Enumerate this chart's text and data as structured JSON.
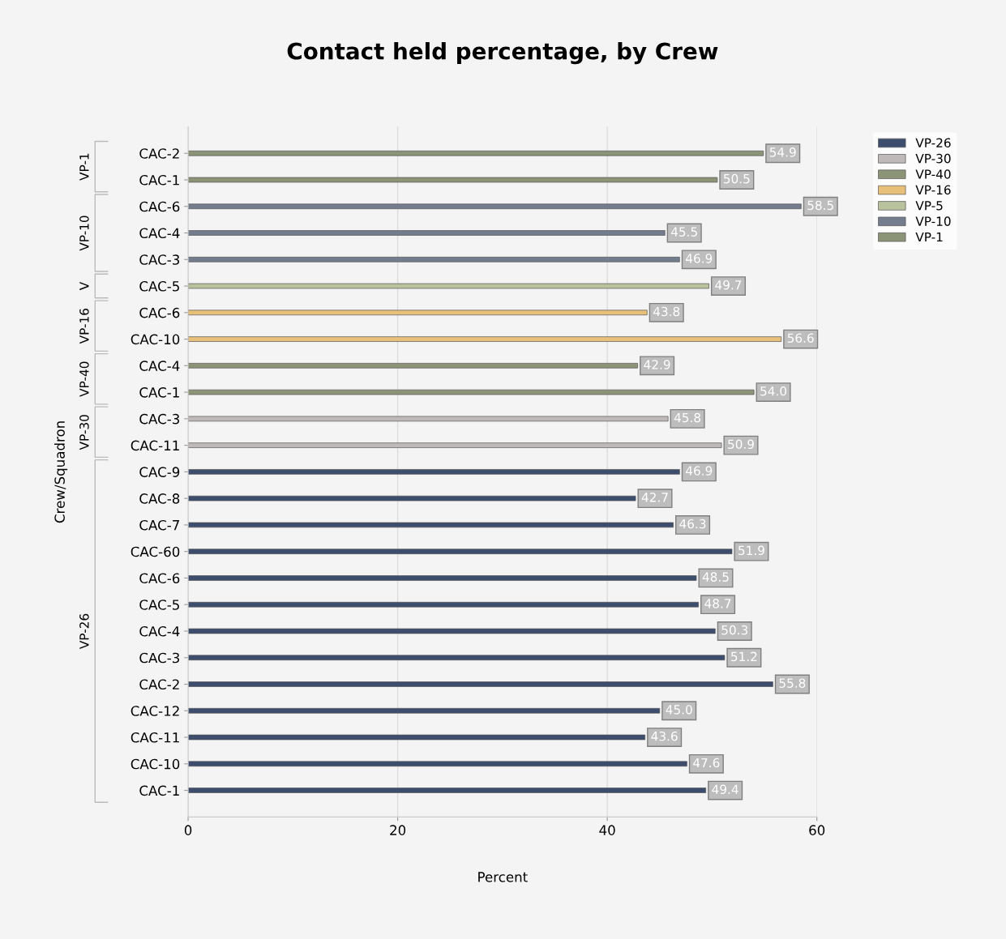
{
  "chart_data": {
    "type": "bar",
    "orientation": "horizontal",
    "title": "Contact held percentage, by Crew",
    "xlabel": "Percent",
    "ylabel": "Crew/Squadron",
    "categories": [
      "CAC-2",
      "CAC-1",
      "CAC-6",
      "CAC-4",
      "CAC-3",
      "CAC-5",
      "CAC-6",
      "CAC-10",
      "CAC-4",
      "CAC-1",
      "CAC-3",
      "CAC-11",
      "CAC-9",
      "CAC-8",
      "CAC-7",
      "CAC-60",
      "CAC-6",
      "CAC-5",
      "CAC-4",
      "CAC-3",
      "CAC-2",
      "CAC-12",
      "CAC-11",
      "CAC-10",
      "CAC-1"
    ],
    "series": [
      {
        "name": "VP-26",
        "color": "#3d4d6e",
        "values": [
          null,
          null,
          null,
          null,
          null,
          null,
          null,
          null,
          null,
          null,
          null,
          null,
          46.9,
          42.7,
          46.3,
          51.9,
          48.5,
          48.7,
          50.3,
          51.2,
          55.8,
          45.0,
          43.6,
          47.6,
          49.4
        ]
      },
      {
        "name": "VP-30",
        "color": "#c0b9b9",
        "values": [
          null,
          null,
          null,
          null,
          null,
          null,
          null,
          null,
          null,
          null,
          45.8,
          50.9,
          null,
          null,
          null,
          null,
          null,
          null,
          null,
          null,
          null,
          null,
          null,
          null,
          null
        ]
      },
      {
        "name": "VP-40",
        "color": "#8c9478",
        "values": [
          null,
          null,
          null,
          null,
          null,
          null,
          null,
          null,
          42.9,
          54.0,
          null,
          null,
          null,
          null,
          null,
          null,
          null,
          null,
          null,
          null,
          null,
          null,
          null,
          null,
          null
        ]
      },
      {
        "name": "VP-16",
        "color": "#e8c07a",
        "values": [
          null,
          null,
          null,
          null,
          null,
          null,
          43.8,
          56.6,
          null,
          null,
          null,
          null,
          null,
          null,
          null,
          null,
          null,
          null,
          null,
          null,
          null,
          null,
          null,
          null,
          null
        ]
      },
      {
        "name": "VP-5",
        "color": "#b8c29c",
        "values": [
          null,
          null,
          null,
          null,
          null,
          49.7,
          null,
          null,
          null,
          null,
          null,
          null,
          null,
          null,
          null,
          null,
          null,
          null,
          null,
          null,
          null,
          null,
          null,
          null,
          null
        ]
      },
      {
        "name": "VP-10",
        "color": "#737d8e",
        "values": [
          null,
          null,
          58.5,
          45.5,
          46.9,
          null,
          null,
          null,
          null,
          null,
          null,
          null,
          null,
          null,
          null,
          null,
          null,
          null,
          null,
          null,
          null,
          null,
          null,
          null,
          null
        ]
      },
      {
        "name": "VP-1",
        "color": "#8c9478",
        "values": [
          54.9,
          50.5,
          null,
          null,
          null,
          null,
          null,
          null,
          null,
          null,
          null,
          null,
          null,
          null,
          null,
          null,
          null,
          null,
          null,
          null,
          null,
          null,
          null,
          null,
          null
        ]
      }
    ],
    "annotations": [
      "VP-26",
      "VP-30",
      "VP-40",
      "VP-16",
      "V",
      "VP-10",
      "VP-1"
    ],
    "xlim": [
      0,
      60
    ],
    "xticks": [
      0,
      20,
      40,
      60
    ],
    "grid": "x",
    "legend": "top right",
    "value_labels": [
      "54.9",
      "50.5",
      "58.5",
      "45.5",
      "46.9",
      "49.7",
      "43.8",
      "56.6",
      "42.9",
      "54.0",
      "45.8",
      "50.9",
      "46.9",
      "42.7",
      "46.3",
      "51.9",
      "48.5",
      "48.7",
      "50.3",
      "51.2",
      "55.8",
      "45.0",
      "43.6",
      "47.6",
      "49.4"
    ]
  }
}
